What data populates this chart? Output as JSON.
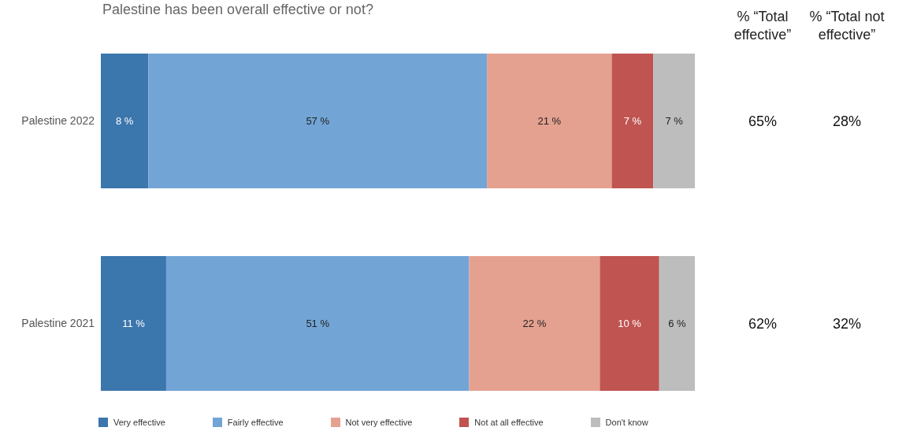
{
  "chart_data": {
    "type": "bar",
    "orientation": "horizontal",
    "stacked": true,
    "title": "Palestine has been overall effective or not?",
    "categories": [
      "Palestine 2022",
      "Palestine 2021"
    ],
    "xlim": [
      0,
      100
    ],
    "legend": "bottom",
    "series": [
      {
        "name": "Very effective",
        "color": "#3b76ad",
        "values": [
          8,
          11
        ],
        "value_labels": [
          "8 %",
          "11 %"
        ]
      },
      {
        "name": "Fairly effective",
        "color": "#72a5d6",
        "values": [
          57,
          51
        ],
        "value_labels": [
          "57 %",
          "51 %"
        ]
      },
      {
        "name": "Not very effective",
        "color": "#e5a190",
        "values": [
          21,
          22
        ],
        "value_labels": [
          "21 %",
          "22 %"
        ]
      },
      {
        "name": "Not at all effective",
        "color": "#c05451",
        "values": [
          7,
          10
        ],
        "value_labels": [
          "7 %",
          "10 %"
        ]
      },
      {
        "name": "Don't know",
        "color": "#bdbdbd",
        "values": [
          7,
          6
        ],
        "value_labels": [
          "7 %",
          "6 %"
        ]
      }
    ],
    "annotations": [
      "% “Total effective”",
      "% “Total not effective”",
      "65%",
      "28%",
      "62%",
      "32%"
    ]
  }
}
